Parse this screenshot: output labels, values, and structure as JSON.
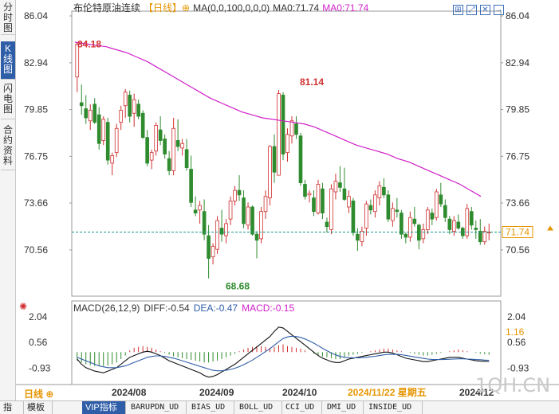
{
  "header": {
    "title": "布伦特原油连续",
    "period_tag": "【日线】",
    "ma_params": "MA(0,0,100,0,0,0)",
    "ma_label": "MA0:71.74",
    "ma_label2": "MA0:71.74"
  },
  "side_tabs": [
    {
      "label": "分时图",
      "active": false
    },
    {
      "label": "K线图",
      "active": true
    },
    {
      "label": "闪电图",
      "active": false
    },
    {
      "label": "合约资料",
      "active": false
    }
  ],
  "window_icons": [
    "grid-icon",
    "expand-icon",
    "close-icon",
    "arrow-right-icon"
  ],
  "macd_header": {
    "params": "MACD(26,12,9)",
    "diff": "DIFF:-0.54",
    "dea": "DEA:-0.47",
    "macd": "MACD:-0.15"
  },
  "period_button": "日线 ⊕",
  "bottom_tabs": [
    {
      "label": "指标",
      "active": false
    },
    {
      "label": "模板",
      "active": false
    },
    {
      "label": "VIP指标",
      "active": true
    },
    {
      "label": "BARUPDN_UD",
      "active": false
    },
    {
      "label": "BIAS_UD",
      "active": false
    },
    {
      "label": "BOLL_UD",
      "active": false
    },
    {
      "label": "CCI_UD",
      "active": false
    },
    {
      "label": "DMI_UD",
      "active": false
    },
    {
      "label": "INSIDE_UD",
      "active": false
    }
  ],
  "watermark": "1QH.CN",
  "colors": {
    "up": "#d03030",
    "down": "#2e8b2e",
    "ma": "#d020c8",
    "price_line": "#1a9a8a",
    "macd_label": "#e69500"
  },
  "chart_data": {
    "type": "candlestick",
    "y_axis_ticks": [
      "86.04",
      "82.94",
      "79.85",
      "76.75",
      "73.66",
      "70.56"
    ],
    "ylim": [
      67.5,
      86.04
    ],
    "x_axis_labels": [
      "2024/08",
      "2024/09",
      "2024/10",
      "2024/11/22 星期五",
      "2024/12"
    ],
    "annotations": {
      "high_start": "84.18",
      "peak": "81.14",
      "low": "68.68"
    },
    "current_price": "71.74",
    "candles_ohlc": [
      [
        82.0,
        84.3,
        81.0,
        84.18
      ],
      [
        80.3,
        81.5,
        79.5,
        80.1
      ],
      [
        79.9,
        80.8,
        78.9,
        79.3
      ],
      [
        79.1,
        80.2,
        78.5,
        79.8
      ],
      [
        80.2,
        80.6,
        78.9,
        79.0
      ],
      [
        79.5,
        80.0,
        77.2,
        77.6
      ],
      [
        77.8,
        79.4,
        77.5,
        79.2
      ],
      [
        79.0,
        79.3,
        76.2,
        76.5
      ],
      [
        76.3,
        77.0,
        75.5,
        76.8
      ],
      [
        77.0,
        78.9,
        76.7,
        78.6
      ],
      [
        79.0,
        80.1,
        78.5,
        79.8
      ],
      [
        80.1,
        81.2,
        79.3,
        81.0
      ],
      [
        80.8,
        81.1,
        79.0,
        79.4
      ],
      [
        79.6,
        80.9,
        78.7,
        80.5
      ],
      [
        80.2,
        80.5,
        79.2,
        79.4
      ],
      [
        79.6,
        79.8,
        77.9,
        78.0
      ],
      [
        78.0,
        78.5,
        76.1,
        76.3
      ],
      [
        76.5,
        77.2,
        75.9,
        77.0
      ],
      [
        77.1,
        79.0,
        76.8,
        78.8
      ],
      [
        78.5,
        79.4,
        77.5,
        77.8
      ],
      [
        77.9,
        78.2,
        76.6,
        76.9
      ],
      [
        76.6,
        77.1,
        75.5,
        75.8
      ],
      [
        75.8,
        79.3,
        75.5,
        78.6
      ],
      [
        77.8,
        79.2,
        77.1,
        77.4
      ],
      [
        77.3,
        77.9,
        76.8,
        77.6
      ],
      [
        77.2,
        77.9,
        75.8,
        76.0
      ],
      [
        75.9,
        76.8,
        73.4,
        73.7
      ],
      [
        73.2,
        74.1,
        72.8,
        73.0
      ],
      [
        73.2,
        73.8,
        72.3,
        73.5
      ],
      [
        73.1,
        73.9,
        71.2,
        71.6
      ],
      [
        71.5,
        72.2,
        68.68,
        70.0
      ],
      [
        70.1,
        71.0,
        69.6,
        70.8
      ],
      [
        70.6,
        72.8,
        70.3,
        72.5
      ],
      [
        72.0,
        73.2,
        71.1,
        71.6
      ],
      [
        71.5,
        72.6,
        71.0,
        72.3
      ],
      [
        72.6,
        74.1,
        72.2,
        73.8
      ],
      [
        73.8,
        74.8,
        73.5,
        74.5
      ],
      [
        74.5,
        75.5,
        73.8,
        74.2
      ],
      [
        74.0,
        74.5,
        72.0,
        72.3
      ],
      [
        72.2,
        73.7,
        71.9,
        73.4
      ],
      [
        73.4,
        73.5,
        71.5,
        71.6
      ],
      [
        71.6,
        71.8,
        70.0,
        71.2
      ],
      [
        71.3,
        73.4,
        71.0,
        73.1
      ],
      [
        73.1,
        74.5,
        72.6,
        74.1
      ],
      [
        74.0,
        77.5,
        73.5,
        77.4
      ],
      [
        77.4,
        78.2,
        75.0,
        75.7
      ],
      [
        75.5,
        81.14,
        75.5,
        80.9
      ],
      [
        80.8,
        81.0,
        76.5,
        76.9
      ],
      [
        77.0,
        78.6,
        76.4,
        78.2
      ],
      [
        78.1,
        79.4,
        77.6,
        79.1
      ],
      [
        78.9,
        79.4,
        77.9,
        78.2
      ],
      [
        78.1,
        78.3,
        74.8,
        75.0
      ],
      [
        74.9,
        75.2,
        73.9,
        74.1
      ],
      [
        74.2,
        74.5,
        73.7,
        74.3
      ],
      [
        74.0,
        74.5,
        72.8,
        73.1
      ],
      [
        73.0,
        75.2,
        72.9,
        74.9
      ],
      [
        74.6,
        75.0,
        72.6,
        73.0
      ],
      [
        72.4,
        72.7,
        71.7,
        72.1
      ],
      [
        71.9,
        74.9,
        71.6,
        74.6
      ],
      [
        74.4,
        75.6,
        73.9,
        75.1
      ],
      [
        75.0,
        76.1,
        74.4,
        74.7
      ],
      [
        74.6,
        76.0,
        73.8,
        73.9
      ],
      [
        73.4,
        74.5,
        73.0,
        74.1
      ],
      [
        73.8,
        74.0,
        71.5,
        71.7
      ],
      [
        71.6,
        72.0,
        70.5,
        71.2
      ],
      [
        71.1,
        72.1,
        70.8,
        71.8
      ],
      [
        72.0,
        73.8,
        71.5,
        73.6
      ],
      [
        73.5,
        73.9,
        72.9,
        73.2
      ],
      [
        73.1,
        74.5,
        72.7,
        74.2
      ],
      [
        74.0,
        75.1,
        73.5,
        74.8
      ],
      [
        74.7,
        75.3,
        74.0,
        74.2
      ],
      [
        74.2,
        74.5,
        72.4,
        72.6
      ],
      [
        72.5,
        73.7,
        72.1,
        73.3
      ],
      [
        73.2,
        74.0,
        72.7,
        73.1
      ],
      [
        73.0,
        73.2,
        71.3,
        71.6
      ],
      [
        71.6,
        71.7,
        71.0,
        71.4
      ],
      [
        71.4,
        73.1,
        71.1,
        72.7
      ],
      [
        72.6,
        73.4,
        72.1,
        72.3
      ],
      [
        72.2,
        72.3,
        70.6,
        71.2
      ],
      [
        71.3,
        72.3,
        71.0,
        71.9
      ],
      [
        71.9,
        73.4,
        71.6,
        73.2
      ],
      [
        73.0,
        73.3,
        72.2,
        72.6
      ],
      [
        72.7,
        74.6,
        72.5,
        74.4
      ],
      [
        74.2,
        75.0,
        73.4,
        73.6
      ],
      [
        73.5,
        73.9,
        72.4,
        72.7
      ],
      [
        72.6,
        72.8,
        71.6,
        71.9
      ],
      [
        71.8,
        72.8,
        71.5,
        72.5
      ],
      [
        72.4,
        72.9,
        71.9,
        72.0
      ],
      [
        72.0,
        72.1,
        71.3,
        71.5
      ],
      [
        71.5,
        73.6,
        71.3,
        73.3
      ],
      [
        73.1,
        73.4,
        71.9,
        72.2
      ],
      [
        72.0,
        72.5,
        71.3,
        71.9
      ],
      [
        71.8,
        72.6,
        70.9,
        71.1
      ],
      [
        71.1,
        72.1,
        70.9,
        71.8
      ],
      [
        71.7,
        72.3,
        71.2,
        71.74
      ]
    ],
    "ma_line": [
      84.3,
      84.2,
      84.1,
      84.0,
      83.8,
      83.6,
      83.3,
      83.0,
      82.6,
      82.2,
      81.8,
      81.4,
      81.0,
      80.6,
      80.3,
      80.0,
      79.7,
      79.5,
      79.3,
      79.2,
      79.1,
      79.0,
      78.9,
      78.7,
      78.4,
      78.1,
      77.8,
      77.5,
      77.3,
      77.1,
      76.9,
      76.6,
      76.4,
      76.1,
      75.8,
      75.5,
      75.2,
      74.9,
      74.5,
      74.1
    ],
    "macd": {
      "y_ticks": [
        "2.04",
        "0.56",
        "-0.93"
      ],
      "ylim": [
        -1.6,
        2.5
      ],
      "diff_value": "1.16",
      "hist": [
        -0.5,
        -0.6,
        -0.7,
        -0.75,
        -0.8,
        -0.82,
        -0.8,
        -0.78,
        -0.7,
        -0.6,
        -0.4,
        -0.2,
        0.1,
        0.25,
        0.3,
        0.35,
        0.3,
        0.25,
        0.15,
        0.05,
        -0.05,
        -0.15,
        -0.25,
        -0.3,
        -0.35,
        -0.4,
        -0.45,
        -0.5,
        -0.55,
        -0.6,
        -0.6,
        -0.55,
        -0.5,
        -0.4,
        -0.3,
        -0.2,
        -0.1,
        0.05,
        0.15,
        0.25,
        0.3,
        0.35,
        0.35,
        0.3,
        0.25,
        0.3,
        0.4,
        0.45,
        0.35,
        0.3,
        0.25,
        0.2,
        0.1,
        0.0,
        -0.1,
        -0.2,
        -0.25,
        -0.3,
        -0.35,
        -0.4,
        -0.4,
        -0.3,
        -0.2,
        -0.15,
        -0.1,
        -0.05,
        0.0,
        0.05,
        0.1,
        0.15,
        0.2,
        0.2,
        0.15,
        0.1,
        0.05,
        0.0,
        -0.05,
        -0.1,
        -0.15,
        -0.2,
        -0.2,
        -0.15,
        -0.1,
        -0.05,
        0.0,
        0.05,
        0.1,
        0.15,
        0.1,
        0.05,
        0.0,
        -0.05,
        -0.1,
        -0.12,
        -0.15
      ],
      "diff": [
        -0.4,
        -0.7,
        -0.9,
        -1.0,
        -1.1,
        -1.15,
        -1.2,
        -1.1,
        -1.0,
        -0.9,
        -0.7,
        -0.5,
        -0.3,
        -0.2,
        -0.1,
        0.0,
        0.05,
        0.0,
        -0.1,
        -0.2,
        -0.35,
        -0.5,
        -0.6,
        -0.7,
        -0.8,
        -0.9,
        -1.0,
        -1.1,
        -1.2,
        -1.35,
        -1.45,
        -1.4,
        -1.3,
        -1.15,
        -1.0,
        -0.85,
        -0.7,
        -0.5,
        -0.3,
        -0.1,
        0.1,
        0.3,
        0.5,
        0.7,
        0.9,
        1.2,
        1.45,
        1.4,
        1.2,
        1.0,
        0.8,
        0.6,
        0.4,
        0.2,
        0.0,
        -0.2,
        -0.35,
        -0.45,
        -0.55,
        -0.6,
        -0.6,
        -0.5,
        -0.4,
        -0.35,
        -0.3,
        -0.25,
        -0.2,
        -0.15,
        -0.1,
        -0.05,
        0.0,
        0.0,
        -0.05,
        -0.15,
        -0.25,
        -0.35,
        -0.4,
        -0.45,
        -0.5,
        -0.55,
        -0.55,
        -0.5,
        -0.45,
        -0.4,
        -0.35,
        -0.3,
        -0.3,
        -0.3,
        -0.35,
        -0.4,
        -0.45,
        -0.5,
        -0.52,
        -0.53,
        -0.54
      ],
      "dea": [
        -0.3,
        -0.4,
        -0.5,
        -0.6,
        -0.7,
        -0.8,
        -0.85,
        -0.9,
        -0.9,
        -0.9,
        -0.85,
        -0.8,
        -0.7,
        -0.6,
        -0.5,
        -0.4,
        -0.3,
        -0.25,
        -0.22,
        -0.22,
        -0.25,
        -0.3,
        -0.35,
        -0.42,
        -0.5,
        -0.58,
        -0.66,
        -0.74,
        -0.82,
        -0.9,
        -0.98,
        -1.05,
        -1.08,
        -1.08,
        -1.05,
        -1.0,
        -0.93,
        -0.84,
        -0.73,
        -0.6,
        -0.46,
        -0.3,
        -0.14,
        0.03,
        0.2,
        0.4,
        0.6,
        0.78,
        0.88,
        0.92,
        0.9,
        0.85,
        0.76,
        0.65,
        0.52,
        0.37,
        0.22,
        0.08,
        -0.05,
        -0.16,
        -0.25,
        -0.3,
        -0.32,
        -0.33,
        -0.33,
        -0.32,
        -0.3,
        -0.27,
        -0.24,
        -0.2,
        -0.16,
        -0.13,
        -0.12,
        -0.13,
        -0.15,
        -0.19,
        -0.23,
        -0.28,
        -0.32,
        -0.36,
        -0.4,
        -0.42,
        -0.43,
        -0.43,
        -0.42,
        -0.41,
        -0.4,
        -0.39,
        -0.39,
        -0.4,
        -0.41,
        -0.43,
        -0.44,
        -0.46,
        -0.47
      ]
    }
  }
}
